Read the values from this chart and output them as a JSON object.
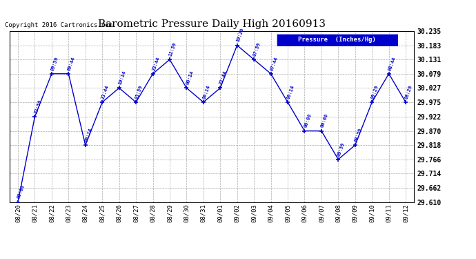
{
  "title": "Barometric Pressure Daily High 20160913",
  "copyright": "Copyright 2016 Cartronics.com",
  "legend_label": "Pressure  (Inches/Hg)",
  "x_labels": [
    "08/20",
    "08/21",
    "08/22",
    "08/23",
    "08/24",
    "08/25",
    "08/26",
    "08/27",
    "08/28",
    "08/29",
    "08/30",
    "08/31",
    "09/01",
    "09/02",
    "09/03",
    "09/04",
    "09/05",
    "09/06",
    "09/07",
    "09/08",
    "09/09",
    "09/10",
    "09/11",
    "09/12"
  ],
  "data_points": [
    {
      "date": "08/20",
      "time": "00:00",
      "value": 29.61
    },
    {
      "date": "08/21",
      "time": "22:59",
      "value": 29.922
    },
    {
      "date": "08/22",
      "time": "09:59",
      "value": 30.079
    },
    {
      "date": "08/23",
      "time": "09:44",
      "value": 30.079
    },
    {
      "date": "08/24",
      "time": "00:14",
      "value": 29.818
    },
    {
      "date": "08/25",
      "time": "23:44",
      "value": 29.975
    },
    {
      "date": "08/26",
      "time": "10:14",
      "value": 30.027
    },
    {
      "date": "08/27",
      "time": "03:59",
      "value": 29.975
    },
    {
      "date": "08/28",
      "time": "23:44",
      "value": 30.079
    },
    {
      "date": "08/29",
      "time": "11:59",
      "value": 30.131
    },
    {
      "date": "08/30",
      "time": "00:14",
      "value": 30.027
    },
    {
      "date": "08/31",
      "time": "00:14",
      "value": 29.975
    },
    {
      "date": "09/01",
      "time": "23:44",
      "value": 30.027
    },
    {
      "date": "09/02",
      "time": "10:29",
      "value": 30.183
    },
    {
      "date": "09/03",
      "time": "07:59",
      "value": 30.131
    },
    {
      "date": "09/04",
      "time": "07:44",
      "value": 30.079
    },
    {
      "date": "09/05",
      "time": "00:14",
      "value": 29.975
    },
    {
      "date": "09/06",
      "time": "00:00",
      "value": 29.87
    },
    {
      "date": "09/07",
      "time": "00:00",
      "value": 29.87
    },
    {
      "date": "09/08",
      "time": "09:59",
      "value": 29.766
    },
    {
      "date": "09/09",
      "time": "08:59",
      "value": 29.818
    },
    {
      "date": "09/10",
      "time": "09:29",
      "value": 29.975
    },
    {
      "date": "09/11",
      "time": "08:44",
      "value": 30.079
    },
    {
      "date": "09/12",
      "time": "08:29",
      "value": 29.975
    }
  ],
  "ylim": [
    29.61,
    30.235
  ],
  "yticks": [
    29.61,
    29.662,
    29.714,
    29.766,
    29.818,
    29.87,
    29.922,
    29.975,
    30.027,
    30.079,
    30.131,
    30.183,
    30.235
  ],
  "line_color": "#0000cc",
  "marker_color": "#0000cc",
  "bg_color": "#ffffff",
  "plot_bg_color": "#ffffff",
  "grid_color": "#aaaaaa",
  "title_color": "#000000",
  "label_color": "#0000cc",
  "legend_bg": "#0000cc",
  "legend_text_color": "#ffffff"
}
